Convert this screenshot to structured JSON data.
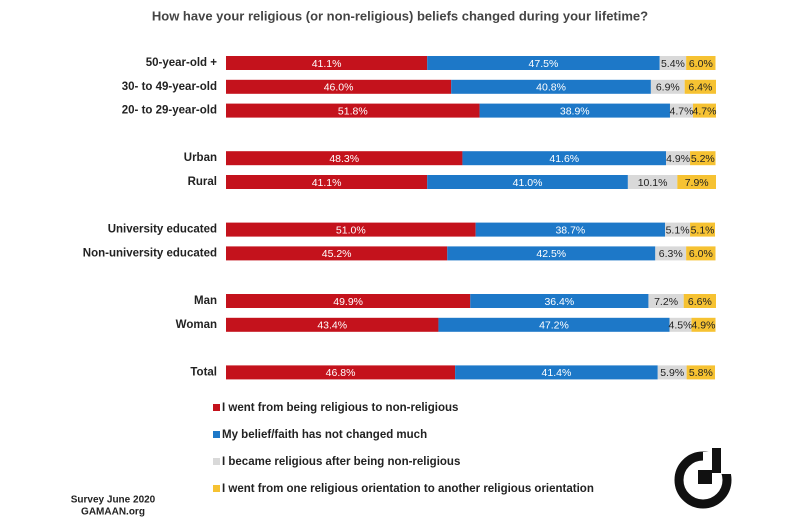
{
  "chart_data": {
    "type": "stacked-bar",
    "orientation": "horizontal",
    "title": "How have your religious (or non-religious) beliefs changed during your lifetime?",
    "categories": [
      "50-year-old +",
      "30- to 49-year-old",
      "20- to 29-year-old",
      null,
      "Urban",
      "Rural",
      null,
      "University educated",
      "Non-university educated",
      null,
      "Man",
      "Woman",
      null,
      "Total"
    ],
    "series": [
      {
        "name": "I went from being religious to non-religious",
        "color": "#c4121c",
        "values": [
          41.1,
          46.0,
          51.8,
          null,
          48.3,
          41.1,
          null,
          51.0,
          45.2,
          null,
          49.9,
          43.4,
          null,
          46.8
        ],
        "value_labels": [
          "41.1%",
          "46.0%",
          "51.8%",
          null,
          "48.3%",
          "41.1%",
          null,
          "51.0%",
          "45.2%",
          null,
          "49.9%",
          "43.4%",
          null,
          "46.8%"
        ]
      },
      {
        "name": "My belief/faith has not changed much",
        "color": "#1d78c8",
        "values": [
          47.5,
          40.8,
          38.9,
          null,
          41.6,
          41.0,
          null,
          38.7,
          42.5,
          null,
          36.4,
          47.2,
          null,
          41.4
        ],
        "value_labels": [
          "47.5%",
          "40.8%",
          "38.9%",
          null,
          "41.6%",
          "41.0%",
          null,
          "38.7%",
          "42.5%",
          null,
          "36.4%",
          "47.2%",
          null,
          "41.4%"
        ]
      },
      {
        "name": "I became religious after being non-religious",
        "color": "#d9d9d9",
        "values": [
          5.4,
          6.9,
          4.7,
          null,
          4.9,
          10.1,
          null,
          5.1,
          6.3,
          null,
          7.2,
          4.5,
          null,
          5.9
        ],
        "value_labels": [
          "5.4%",
          "6.9%",
          "4.7%",
          null,
          "4.9%",
          "10.1%",
          null,
          "5.1%",
          "6.3%",
          null,
          "7.2%",
          "4.5%",
          null,
          "5.9%"
        ]
      },
      {
        "name": "I went from one religious orientation to another religious orientation",
        "color": "#f6c232",
        "values": [
          6.0,
          6.4,
          4.7,
          null,
          5.2,
          7.9,
          null,
          5.1,
          6.0,
          null,
          6.6,
          4.9,
          null,
          5.8
        ],
        "value_labels": [
          "6.0%",
          "6.4%",
          "4.7%",
          null,
          "5.2%",
          "7.9%",
          null,
          "5.1%",
          "6.0%",
          null,
          "6.6%",
          "4.9%",
          null,
          "5.8%"
        ]
      }
    ],
    "notes": [
      "Survey June 2020",
      "GAMAAN.org"
    ]
  }
}
